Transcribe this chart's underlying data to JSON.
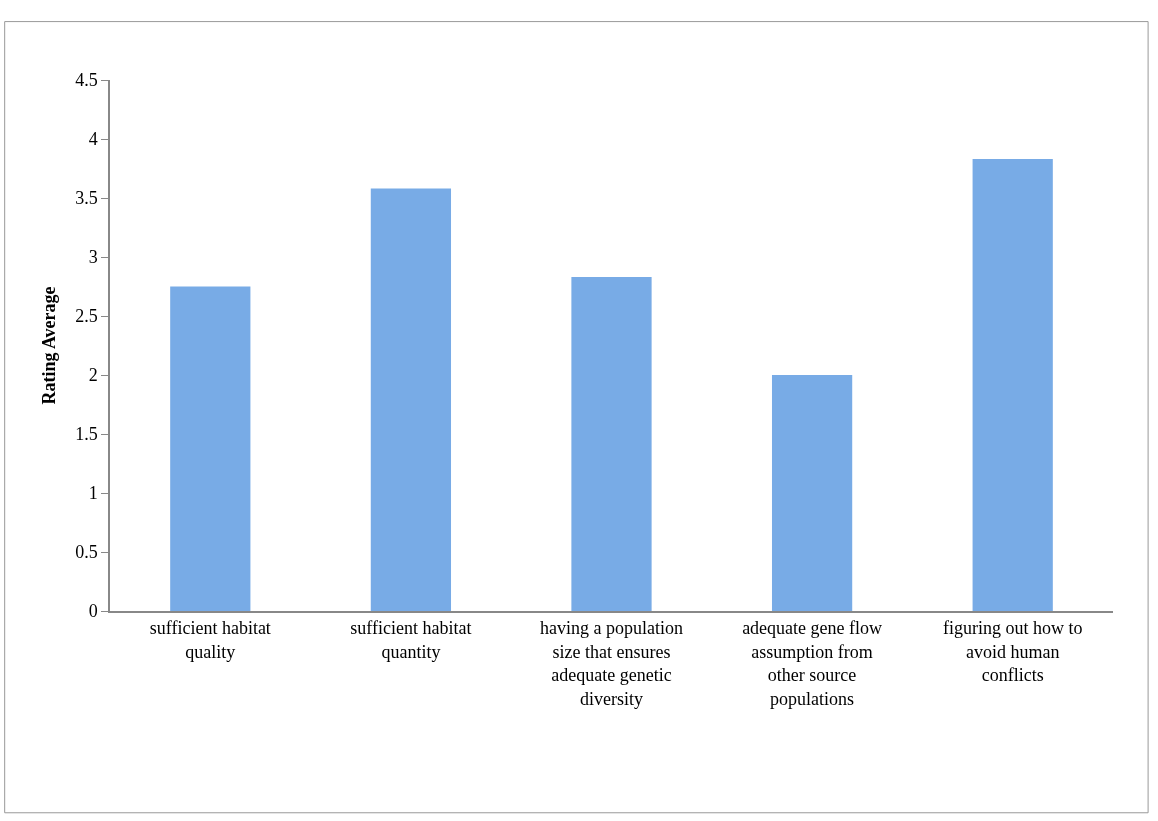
{
  "chart_data": {
    "type": "bar",
    "ylabel": "Rating Average",
    "categories": [
      "sufficient habitat quality",
      "sufficient habitat quantity",
      "having a population size that ensures adequate genetic diversity",
      "adequate gene flow assumption from other source populations",
      "figuring out how to avoid human conflicts"
    ],
    "values": [
      2.75,
      3.58,
      2.83,
      2.0,
      3.83
    ],
    "color": "#78abe6",
    "ylim": [
      0,
      4.5
    ],
    "yticks": [
      0,
      0.5,
      1,
      1.5,
      2,
      2.5,
      3,
      3.5,
      4,
      4.5
    ]
  }
}
